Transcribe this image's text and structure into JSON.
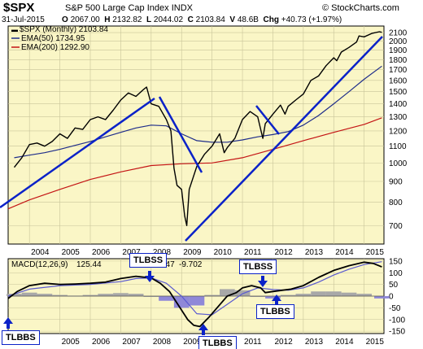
{
  "header": {
    "symbol": "$SPX",
    "name": "S&P 500 Large Cap Index",
    "exchange": "INDX",
    "logo": "© StockCharts.com",
    "date": "31-Jul-2015",
    "ohlc": [
      {
        "k": "O",
        "v": "2067.00"
      },
      {
        "k": "H",
        "v": "2132.82"
      },
      {
        "k": "L",
        "v": "2044.02"
      },
      {
        "k": "C",
        "v": "2103.84"
      },
      {
        "k": "V",
        "v": "48.6B"
      }
    ],
    "chg_label": "Chg",
    "chg_value": "+40.73 (+1.97%)"
  },
  "legend": {
    "price": "$SPX (Monthly) 2103.84",
    "ema50": "EMA(50) 1734.95",
    "ema200": "EMA(200) 1292.90",
    "macd_name": "MACD(12,26,9)",
    "macd_val1": "125.44",
    "macd_val2": "147",
    "macd_val3": "-9.702"
  },
  "annotations": [
    {
      "text": "TLBBS"
    },
    {
      "text": "TLBSS"
    },
    {
      "text": "TLBBS"
    },
    {
      "text": "TLBSS"
    },
    {
      "text": "TLBBS"
    }
  ],
  "colors": {
    "panel_bg": "#faf6c6",
    "grid": "#c8c49a",
    "price": "#000000",
    "ema50": "#1f2d8a",
    "ema200": "#c41515",
    "trendline": "#0b22c8",
    "macd": "#000000",
    "signal": "#5a5ad0",
    "histogram": "#a8a8a8",
    "histogram_neg": "#8f88d8"
  },
  "chart_data": [
    {
      "type": "line",
      "title": "$SPX (Monthly) 2103.84",
      "y_scale": "log",
      "ylim": [
        630,
        2180
      ],
      "y_ticks": [
        700,
        800,
        900,
        1000,
        1100,
        1200,
        1300,
        1400,
        1500,
        1600,
        1700,
        1800,
        1900,
        2000,
        2100
      ],
      "x_ticks": [
        "2004",
        "2005",
        "2006",
        "2007",
        "2008",
        "2009",
        "2010",
        "2011",
        "2012",
        "2013",
        "2014",
        "2015"
      ],
      "x_range": [
        2003.3,
        2015.65
      ],
      "grid": true,
      "legend_position": "top-left",
      "series": [
        {
          "name": "$SPX (Monthly)",
          "x": [
            2003.5,
            2003.75,
            2004.0,
            2004.25,
            2004.5,
            2004.75,
            2005.0,
            2005.25,
            2005.5,
            2005.75,
            2006.0,
            2006.25,
            2006.5,
            2006.75,
            2007.0,
            2007.25,
            2007.5,
            2007.75,
            2007.85,
            2008.0,
            2008.25,
            2008.5,
            2008.65,
            2008.75,
            2008.85,
            2009.0,
            2009.1,
            2009.17,
            2009.25,
            2009.5,
            2009.75,
            2010.0,
            2010.25,
            2010.4,
            2010.5,
            2010.75,
            2011.0,
            2011.25,
            2011.5,
            2011.67,
            2011.75,
            2012.0,
            2012.25,
            2012.4,
            2012.5,
            2012.75,
            2013.0,
            2013.25,
            2013.5,
            2013.75,
            2014.0,
            2014.1,
            2014.25,
            2014.5,
            2014.75,
            2014.83,
            2015.0,
            2015.25,
            2015.5,
            2015.58
          ],
          "y": [
            975,
            1030,
            1110,
            1120,
            1100,
            1130,
            1180,
            1150,
            1220,
            1210,
            1280,
            1300,
            1280,
            1350,
            1430,
            1490,
            1460,
            1520,
            1540,
            1400,
            1380,
            1280,
            1200,
            970,
            880,
            860,
            740,
            700,
            860,
            980,
            1050,
            1100,
            1180,
            1060,
            1090,
            1150,
            1280,
            1340,
            1300,
            1150,
            1250,
            1320,
            1390,
            1320,
            1380,
            1430,
            1480,
            1600,
            1640,
            1740,
            1820,
            1790,
            1880,
            1930,
            1990,
            2060,
            2050,
            2090,
            2110,
            2104
          ]
        },
        {
          "name": "EMA(50)",
          "x": [
            2003.5,
            2004.0,
            2004.5,
            2005.0,
            2005.5,
            2006.0,
            2006.5,
            2007.0,
            2007.5,
            2008.0,
            2008.5,
            2009.0,
            2009.5,
            2010.0,
            2010.5,
            2011.0,
            2011.5,
            2012.0,
            2012.5,
            2013.0,
            2013.5,
            2014.0,
            2014.5,
            2015.0,
            2015.58
          ],
          "y": [
            1030,
            1045,
            1060,
            1080,
            1105,
            1130,
            1160,
            1190,
            1220,
            1240,
            1235,
            1180,
            1135,
            1125,
            1125,
            1140,
            1160,
            1175,
            1195,
            1240,
            1310,
            1400,
            1500,
            1610,
            1735
          ]
        },
        {
          "name": "EMA(200)",
          "x": [
            2003.3,
            2004.0,
            2005.0,
            2006.0,
            2007.0,
            2008.0,
            2009.0,
            2010.0,
            2011.0,
            2012.0,
            2013.0,
            2014.0,
            2015.0,
            2015.58
          ],
          "y": [
            770,
            810,
            860,
            910,
            950,
            985,
            995,
            1000,
            1030,
            1080,
            1135,
            1190,
            1245,
            1293
          ]
        }
      ]
    },
    {
      "type": "line",
      "title": "MACD(12,26,9)",
      "ylim": [
        -160,
        160
      ],
      "y_ticks": [
        -150,
        -100,
        -50,
        0,
        50,
        100,
        150
      ],
      "x_ticks": [
        "2005",
        "2006",
        "2007",
        "2008",
        "2009",
        "2010",
        "2011",
        "2012",
        "2013",
        "2014",
        "2015"
      ],
      "x_range": [
        2003.3,
        2015.65
      ],
      "grid": true,
      "series": [
        {
          "name": "MACD",
          "x": [
            2003.3,
            2003.6,
            2004.0,
            2004.5,
            2005.0,
            2005.5,
            2006.0,
            2006.5,
            2007.0,
            2007.5,
            2008.0,
            2008.3,
            2008.6,
            2008.9,
            2009.2,
            2009.4,
            2009.6,
            2009.9,
            2010.2,
            2010.5,
            2010.8,
            2011.0,
            2011.3,
            2011.6,
            2011.75,
            2012.0,
            2012.3,
            2012.6,
            2013.0,
            2013.5,
            2014.0,
            2014.5,
            2015.0,
            2015.3,
            2015.58
          ],
          "y": [
            -10,
            20,
            45,
            55,
            50,
            52,
            55,
            60,
            75,
            85,
            78,
            55,
            20,
            -40,
            -100,
            -125,
            -130,
            -90,
            -45,
            0,
            15,
            35,
            45,
            35,
            15,
            20,
            25,
            30,
            45,
            80,
            110,
            130,
            145,
            140,
            125
          ]
        },
        {
          "name": "Signal",
          "x": [
            2003.3,
            2004.0,
            2005.0,
            2006.0,
            2007.0,
            2007.5,
            2008.0,
            2008.5,
            2009.0,
            2009.5,
            2010.0,
            2010.5,
            2011.0,
            2011.5,
            2012.0,
            2012.5,
            2013.0,
            2013.5,
            2014.0,
            2014.5,
            2015.0,
            2015.58
          ],
          "y": [
            0,
            30,
            45,
            50,
            62,
            75,
            78,
            55,
            0,
            -75,
            -80,
            -35,
            10,
            35,
            28,
            25,
            35,
            60,
            90,
            115,
            135,
            147
          ]
        },
        {
          "name": "Histogram",
          "x": [
            2003.5,
            2004.0,
            2004.5,
            2005.0,
            2005.5,
            2006.0,
            2006.5,
            2007.0,
            2007.5,
            2008.0,
            2008.5,
            2009.0,
            2009.5,
            2010.0,
            2010.5,
            2011.0,
            2011.5,
            2012.0,
            2012.5,
            2013.0,
            2013.5,
            2014.0,
            2014.5,
            2015.0,
            2015.58
          ],
          "y": [
            10,
            15,
            10,
            5,
            2,
            5,
            10,
            13,
            10,
            0,
            -20,
            -50,
            -40,
            5,
            30,
            25,
            0,
            -10,
            5,
            10,
            20,
            20,
            15,
            10,
            -10
          ]
        }
      ]
    }
  ]
}
